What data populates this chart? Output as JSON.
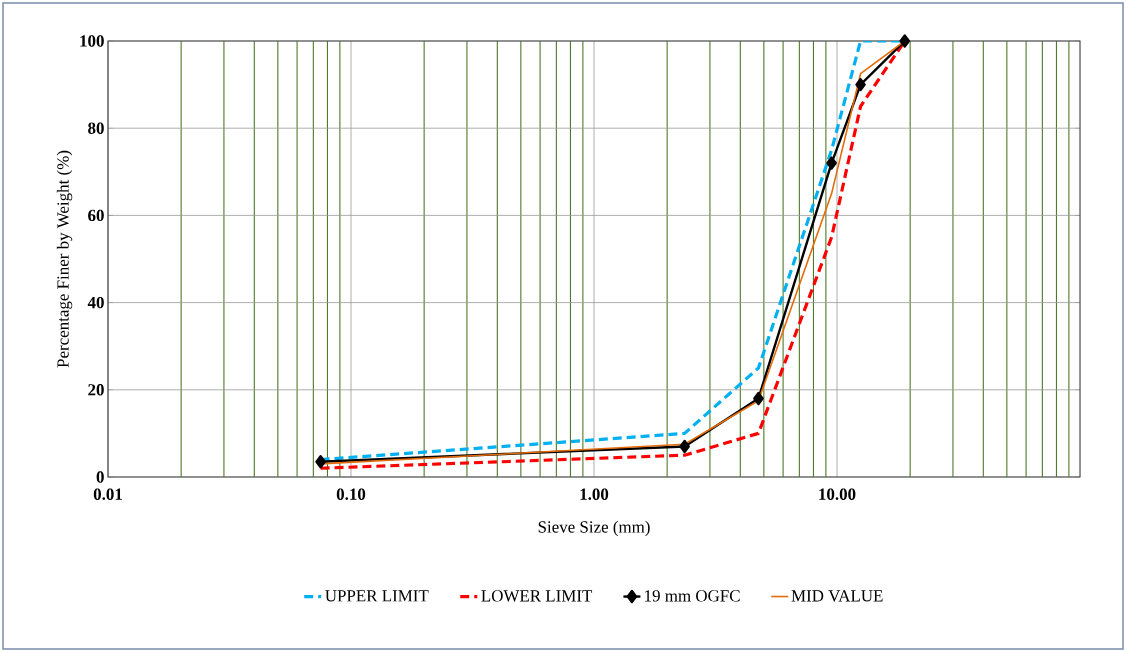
{
  "chart_data": {
    "type": "line",
    "xlabel": "Sieve Size (mm)",
    "ylabel": "Percentage Finer by Weight (%)",
    "log": "x",
    "xlim": [
      0.01,
      100
    ],
    "ylim": [
      0,
      100
    ],
    "xticks": [
      0.01,
      {
        "value": 0.02,
        "label": null
      },
      {
        "value": 0.03,
        "label": null
      },
      {
        "value": 0.04,
        "label": null
      },
      {
        "value": 0.05,
        "label": null
      },
      {
        "value": 0.06,
        "label": null
      },
      {
        "value": 0.07,
        "label": null
      },
      {
        "value": 0.08,
        "label": null
      },
      {
        "value": 0.09,
        "label": null
      },
      {
        "value": 0.1,
        "label": "0.10"
      },
      {
        "value": 0.2,
        "label": null
      },
      {
        "value": 0.3,
        "label": null
      },
      {
        "value": 0.4,
        "label": null
      },
      {
        "value": 0.5,
        "label": null
      },
      {
        "value": 0.6,
        "label": null
      },
      {
        "value": 0.7,
        "label": null
      },
      {
        "value": 0.8,
        "label": null
      },
      {
        "value": 0.9,
        "label": null
      },
      {
        "value": 1,
        "label": "1.00"
      },
      {
        "value": 2,
        "label": null
      },
      {
        "value": 3,
        "label": null
      },
      {
        "value": 4,
        "label": null
      },
      {
        "value": 5,
        "label": null
      },
      {
        "value": 6,
        "label": null
      },
      {
        "value": 7,
        "label": null
      },
      {
        "value": 8,
        "label": null
      },
      {
        "value": 9,
        "label": null
      },
      {
        "value": 10,
        "label": "10.00"
      },
      {
        "value": 20,
        "label": null
      },
      {
        "value": 30,
        "label": null
      },
      {
        "value": 40,
        "label": null
      },
      {
        "value": 50,
        "label": null
      },
      {
        "value": 60,
        "label": null
      },
      {
        "value": 70,
        "label": null
      },
      {
        "value": 80,
        "label": null
      },
      {
        "value": 90,
        "label": null
      }
    ],
    "yticks": [
      0,
      20,
      40,
      60,
      80,
      100
    ],
    "grid": true,
    "legend": "bottom",
    "x": [
      0.075,
      2.36,
      4.75,
      9.5,
      12.5,
      19
    ],
    "series": [
      {
        "name": "UPPER LIMIT",
        "color": "#00b0f0",
        "line_style": "dashed",
        "marker": "none",
        "values": [
          4,
          10,
          25,
          75,
          100,
          100
        ]
      },
      {
        "name": "LOWER LIMIT",
        "color": "#ff0000",
        "line_style": "dashed",
        "marker": "none",
        "values": [
          2,
          5,
          10,
          55,
          85,
          100
        ]
      },
      {
        "name": "19 mm OGFC",
        "color": "#000000",
        "line_style": "solid",
        "marker": "diamond",
        "values": [
          3.5,
          7,
          18,
          72,
          90,
          100
        ]
      },
      {
        "name": "MID VALUE",
        "color": "#e46c0a",
        "line_style": "solid",
        "marker": "none",
        "values": [
          3,
          7.5,
          17.5,
          65,
          92.5,
          100
        ]
      }
    ]
  }
}
